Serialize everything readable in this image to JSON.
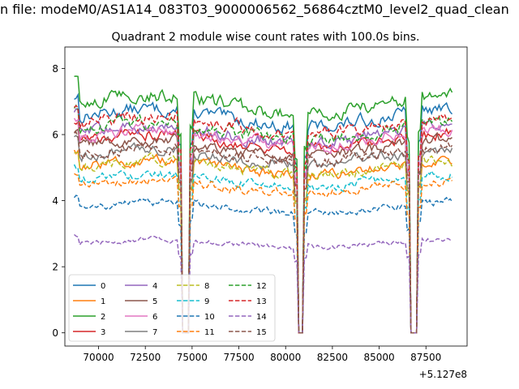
{
  "suptitle": "n file: modeM0/AS1A14_083T03_9000006562_56864cztM0_level2_quad_clean",
  "chart_data": {
    "type": "line",
    "title": "Quadrant 2 module wise count rates with 100.0s bins.",
    "xlabel": "",
    "ylabel": "",
    "offset_text": "+5.127e8",
    "xlim": [
      68200,
      89700
    ],
    "ylim": [
      -0.4,
      8.65
    ],
    "x_ticks": [
      70000,
      72500,
      75000,
      77500,
      80000,
      82500,
      85000,
      87500
    ],
    "x_tick_labels": [
      "70000",
      "72500",
      "75000",
      "77500",
      "80000",
      "82500",
      "85000",
      "87500"
    ],
    "y_ticks": [
      0,
      2,
      4,
      6,
      8
    ],
    "y_tick_labels": [
      "0",
      "2",
      "4",
      "6",
      "8"
    ],
    "x_range": [
      68700,
      88900
    ],
    "bin_step": 100,
    "gaps": [
      [
        74500,
        74800
      ],
      [
        80700,
        80900
      ],
      [
        86700,
        87000
      ]
    ],
    "legend_position": "lower left",
    "series": [
      {
        "name": "0",
        "color": "#1f77b4",
        "dashed": false,
        "level": 6.5
      },
      {
        "name": "1",
        "color": "#ff7f0e",
        "dashed": false,
        "level": 5.0
      },
      {
        "name": "2",
        "color": "#2ca02c",
        "dashed": false,
        "level": 6.9
      },
      {
        "name": "3",
        "color": "#d62728",
        "dashed": false,
        "level": 5.8
      },
      {
        "name": "4",
        "color": "#9467bd",
        "dashed": false,
        "level": 6.0
      },
      {
        "name": "5",
        "color": "#8c564b",
        "dashed": false,
        "level": 5.6
      },
      {
        "name": "6",
        "color": "#e377c2",
        "dashed": false,
        "level": 5.9
      },
      {
        "name": "7",
        "color": "#7f7f7f",
        "dashed": false,
        "level": 5.3
      },
      {
        "name": "8",
        "color": "#bcbd22",
        "dashed": true,
        "level": 5.0
      },
      {
        "name": "9",
        "color": "#17becf",
        "dashed": true,
        "level": 4.6
      },
      {
        "name": "10",
        "color": "#1f77b4",
        "dashed": true,
        "level": 3.8
      },
      {
        "name": "11",
        "color": "#ff7f0e",
        "dashed": true,
        "level": 4.4
      },
      {
        "name": "12",
        "color": "#2ca02c",
        "dashed": true,
        "level": 6.1
      },
      {
        "name": "13",
        "color": "#d62728",
        "dashed": true,
        "level": 6.3
      },
      {
        "name": "14",
        "color": "#9467bd",
        "dashed": true,
        "level": 2.7
      },
      {
        "name": "15",
        "color": "#8c564b",
        "dashed": true,
        "level": 5.4
      }
    ]
  }
}
